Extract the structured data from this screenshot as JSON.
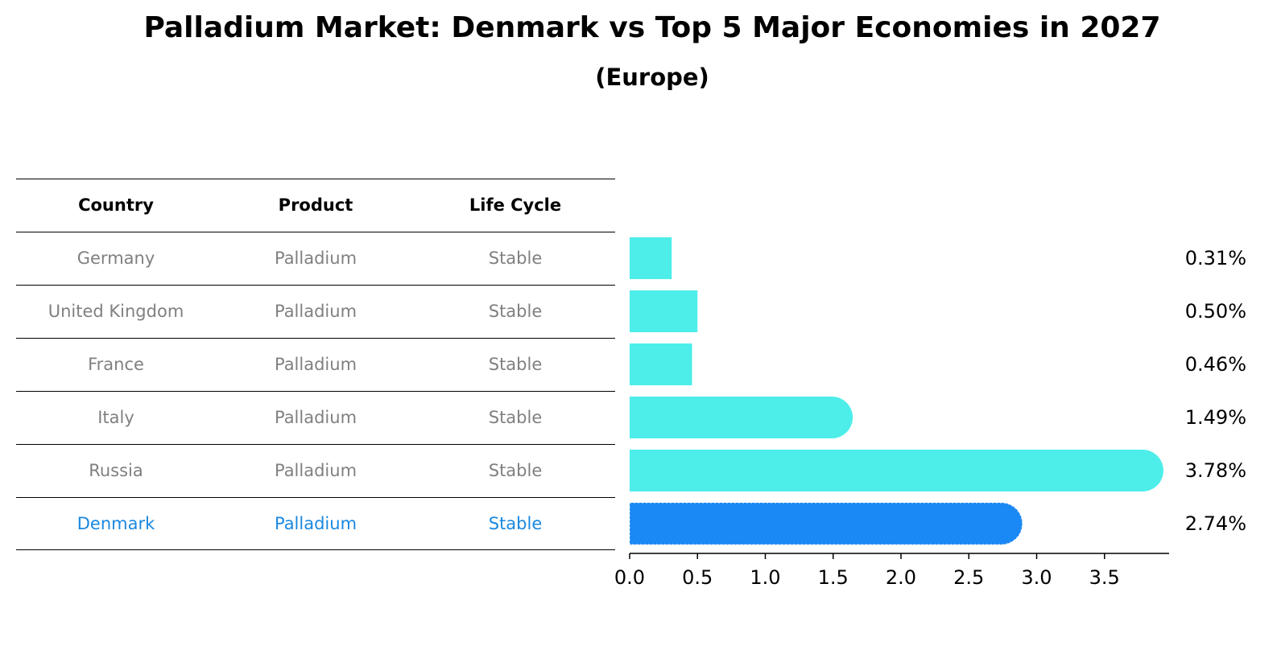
{
  "title": "Palladium Market: Denmark vs Top 5 Major Economies in 2027",
  "subtitle": "(Europe)",
  "table": {
    "headers": [
      "Country",
      "Product",
      "Life Cycle"
    ],
    "rows": [
      {
        "country": "Germany",
        "product": "Palladium",
        "life_cycle": "Stable"
      },
      {
        "country": "United Kingdom",
        "product": "Palladium",
        "life_cycle": "Stable"
      },
      {
        "country": "France",
        "product": "Palladium",
        "life_cycle": "Stable"
      },
      {
        "country": "Italy",
        "product": "Palladium",
        "life_cycle": "Stable"
      },
      {
        "country": "Russia",
        "product": "Palladium",
        "life_cycle": "Stable"
      },
      {
        "country": "Denmark",
        "product": "Palladium",
        "life_cycle": "Stable"
      }
    ],
    "highlight_row": "Denmark"
  },
  "colors": {
    "bar": "#4deeea",
    "highlight": "#1a88f5",
    "highlight_text": "#1a88e0",
    "muted_text": "#808080"
  },
  "chart_data": {
    "type": "bar",
    "orientation": "horizontal",
    "categories": [
      "Germany",
      "United Kingdom",
      "France",
      "Italy",
      "Russia",
      "Denmark"
    ],
    "values": [
      0.31,
      0.5,
      0.46,
      1.49,
      3.78,
      2.74
    ],
    "value_labels": [
      "0.31%",
      "0.50%",
      "0.46%",
      "1.49%",
      "3.78%",
      "2.74%"
    ],
    "xticks": [
      "0.0",
      "0.5",
      "1.0",
      "1.5",
      "2.0",
      "2.5",
      "3.0",
      "3.5"
    ],
    "xlim": [
      0,
      3.97
    ],
    "highlight": "Denmark"
  }
}
